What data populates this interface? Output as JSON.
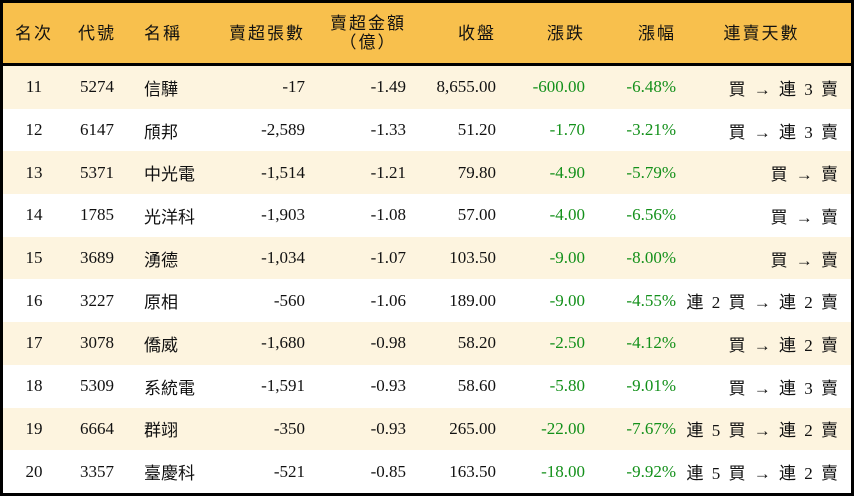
{
  "colors": {
    "header_bg": "#F8C04D",
    "odd_row_bg": "#FDF4DF",
    "negative": "#13901A",
    "border": "#000000"
  },
  "headers": [
    "名次",
    "代號",
    "名稱",
    "賣超張數",
    "賣超金額",
    "（億）",
    "收盤",
    "漲跌",
    "漲幅",
    "連賣天數"
  ],
  "rows": [
    [
      "11",
      "5274",
      "信驊",
      "-17",
      "-1.49",
      "8,655.00",
      "-600.00",
      "-6.48%",
      "買 → 連 3 賣"
    ],
    [
      "12",
      "6147",
      "頎邦",
      "-2,589",
      "-1.33",
      "51.20",
      "-1.70",
      "-3.21%",
      "買 → 連 3 賣"
    ],
    [
      "13",
      "5371",
      "中光電",
      "-1,514",
      "-1.21",
      "79.80",
      "-4.90",
      "-5.79%",
      "買 → 賣"
    ],
    [
      "14",
      "1785",
      "光洋科",
      "-1,903",
      "-1.08",
      "57.00",
      "-4.00",
      "-6.56%",
      "買 → 賣"
    ],
    [
      "15",
      "3689",
      "湧德",
      "-1,034",
      "-1.07",
      "103.50",
      "-9.00",
      "-8.00%",
      "買 → 賣"
    ],
    [
      "16",
      "3227",
      "原相",
      "-560",
      "-1.06",
      "189.00",
      "-9.00",
      "-4.55%",
      "連 2 買 → 連 2 賣"
    ],
    [
      "17",
      "3078",
      "僑威",
      "-1,680",
      "-0.98",
      "58.20",
      "-2.50",
      "-4.12%",
      "買 → 連 2 賣"
    ],
    [
      "18",
      "5309",
      "系統電",
      "-1,591",
      "-0.93",
      "58.60",
      "-5.80",
      "-9.01%",
      "買 → 連 3 賣"
    ],
    [
      "19",
      "6664",
      "群翊",
      "-350",
      "-0.93",
      "265.00",
      "-22.00",
      "-7.67%",
      "連 5 買 → 連 2 賣"
    ],
    [
      "20",
      "3357",
      "臺慶科",
      "-521",
      "-0.85",
      "163.50",
      "-18.00",
      "-9.92%",
      "連 5 買 → 連 2 賣"
    ]
  ]
}
